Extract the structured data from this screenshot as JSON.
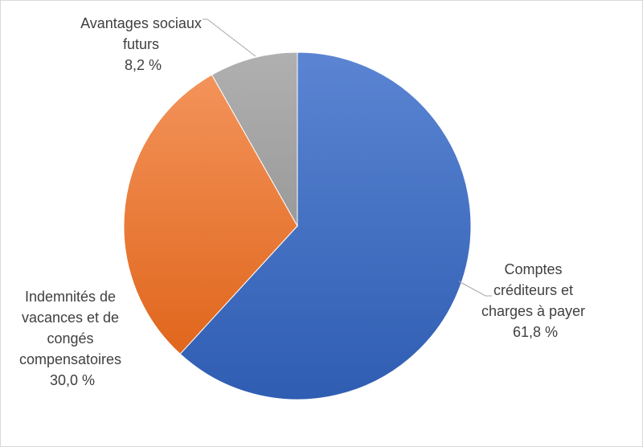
{
  "chart_data": {
    "type": "pie",
    "start_angle_deg": 0,
    "direction": "clockwise",
    "slices": [
      {
        "label_lines": [
          "Comptes",
          "créditeurs et",
          "charges à payer"
        ],
        "value": 61.8,
        "value_label": "61,8 %",
        "color": "#4472c4",
        "color_light": "#5b85d3",
        "color_dark": "#2f5db2"
      },
      {
        "label_lines": [
          "Indemnités de",
          "vacances et de",
          "congés",
          "compensatoires"
        ],
        "value": 30.0,
        "value_label": "30,0 %",
        "color": "#ed7d31",
        "color_light": "#f3935a",
        "color_dark": "#e0661c"
      },
      {
        "label_lines": [
          "Avantages sociaux",
          "futurs"
        ],
        "value": 8.2,
        "value_label": "8,2 %",
        "color": "#a5a5a5",
        "color_light": "#b0b0b0",
        "color_dark": "#9a9a9a"
      }
    ]
  }
}
